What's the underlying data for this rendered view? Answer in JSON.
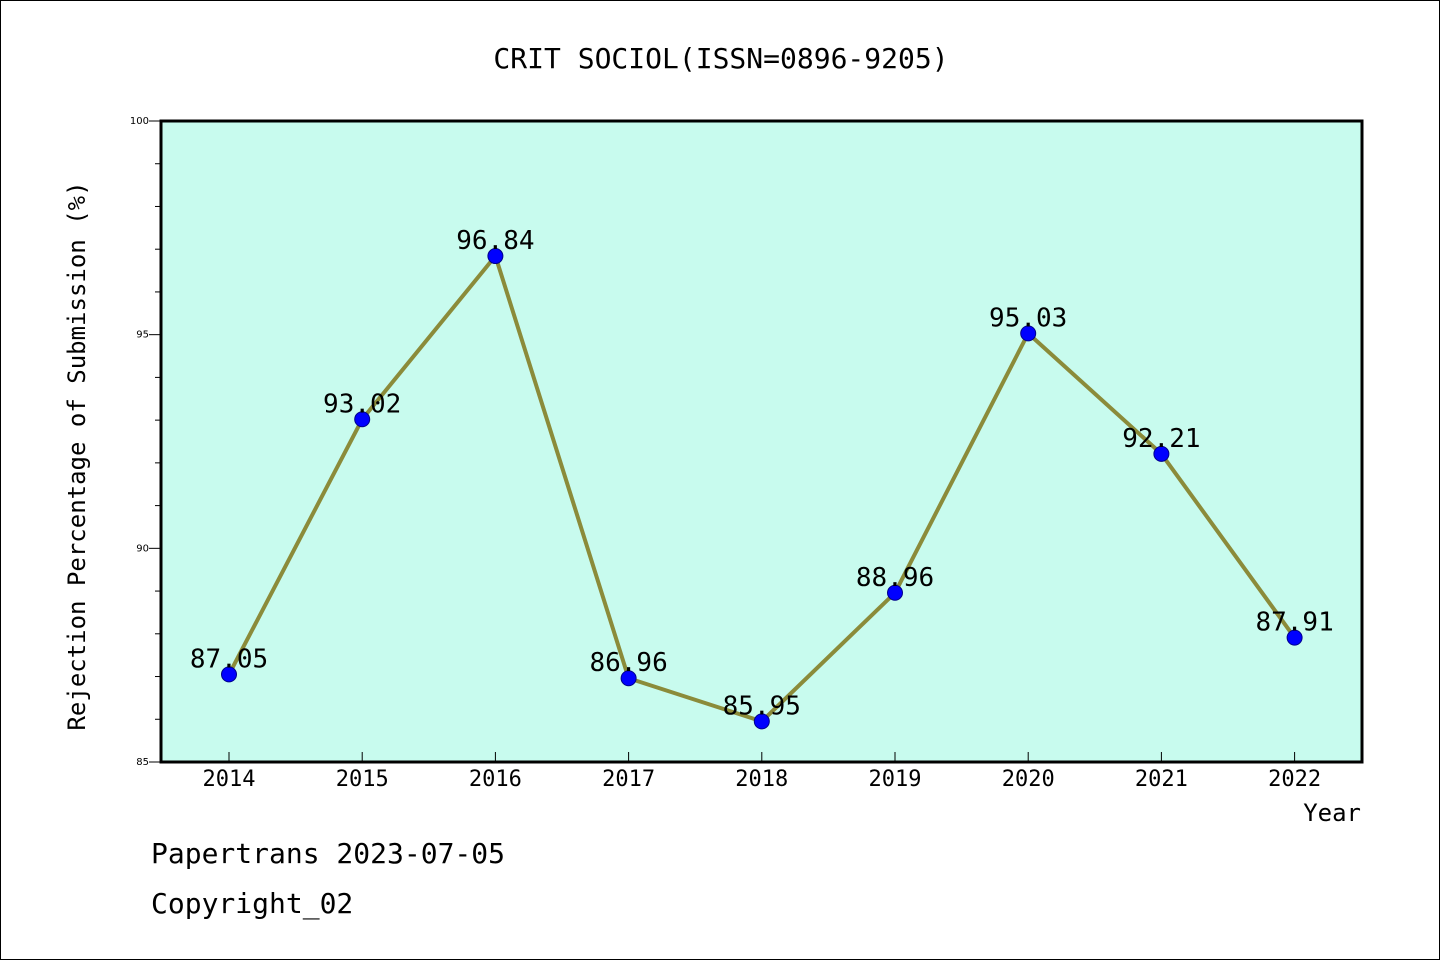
{
  "chart_data": {
    "type": "line",
    "title": "CRIT SOCIOL(ISSN=0896-9205)",
    "xlabel": "Year",
    "ylabel": "Rejection Percentage of Submission (%)",
    "categories": [
      "2014",
      "2015",
      "2016",
      "2017",
      "2018",
      "2019",
      "2020",
      "2021",
      "2022"
    ],
    "series": [
      {
        "values": [
          87.05,
          93.02,
          96.84,
          86.96,
          85.95,
          88.96,
          95.03,
          92.21,
          87.91
        ]
      }
    ],
    "data_labels": [
      "87.05",
      "93.02",
      "96.84",
      "86.96",
      "85.95",
      "88.96",
      "95.03",
      "92.21",
      "87.91"
    ],
    "ylim": [
      85,
      100
    ],
    "yticks": [
      "85",
      "90",
      "95",
      "100"
    ],
    "grid": false,
    "legend": "none",
    "colors": {
      "plot_background": "#c8fbee",
      "line": "#8b8b3a",
      "marker": "#0000ff"
    }
  },
  "footer": {
    "line1": "Papertrans 2023-07-05",
    "line2": "Copyright_02"
  }
}
